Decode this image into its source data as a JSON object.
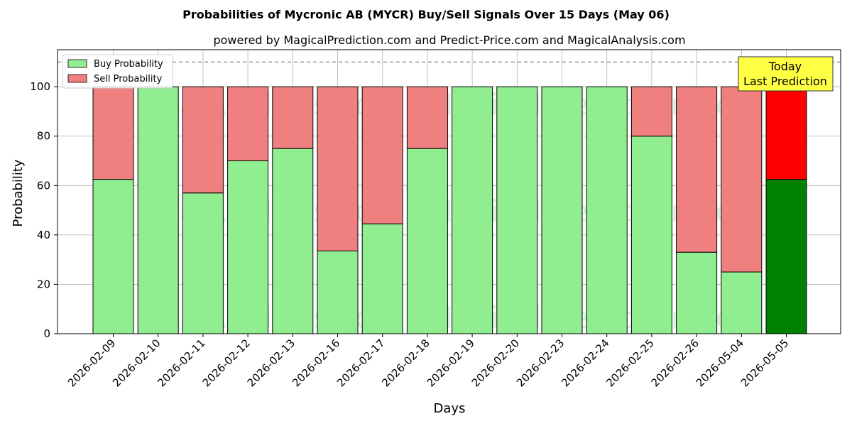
{
  "chart_data": {
    "type": "bar",
    "stacked": true,
    "title": "Probabilities of Mycronic AB (MYCR) Buy/Sell Signals Over 15 Days (May 06)",
    "subtitle": "powered by MagicalPrediction.com and Predict-Price.com and MagicalAnalysis.com",
    "xlabel": "Days",
    "ylabel": "Probability",
    "ylim": [
      0,
      115
    ],
    "yticks": [
      0,
      20,
      40,
      60,
      80,
      100
    ],
    "grid": true,
    "legend_position": "top-left",
    "reference_line": 110,
    "categories": [
      "2026-02-09",
      "2026-02-10",
      "2026-02-11",
      "2026-02-12",
      "2026-02-13",
      "2026-02-16",
      "2026-02-17",
      "2026-02-18",
      "2026-02-19",
      "2026-02-20",
      "2026-02-23",
      "2026-02-24",
      "2026-02-25",
      "2026-02-26",
      "2026-05-04",
      "2026-05-05"
    ],
    "series": [
      {
        "name": "Buy Probability",
        "color": "#90ee90",
        "highlight_color": "#008000",
        "values": [
          62.5,
          100,
          57,
          70,
          75,
          33.5,
          44.5,
          75,
          100,
          100,
          100,
          100,
          80,
          33,
          25,
          62.5
        ]
      },
      {
        "name": "Sell Probability",
        "color": "#f08080",
        "highlight_color": "#ff0000",
        "values": [
          37.5,
          0,
          43,
          30,
          25,
          66.5,
          55.5,
          25,
          0,
          0,
          0,
          0,
          20,
          67,
          75,
          37.5
        ]
      }
    ],
    "highlight_index": 15,
    "annotation": {
      "lines": [
        "Today",
        "Last Prediction"
      ],
      "color": "#ffff44"
    },
    "watermarks": [
      "MagicalAnalysis.com",
      "MagicalPrediction.com"
    ]
  }
}
